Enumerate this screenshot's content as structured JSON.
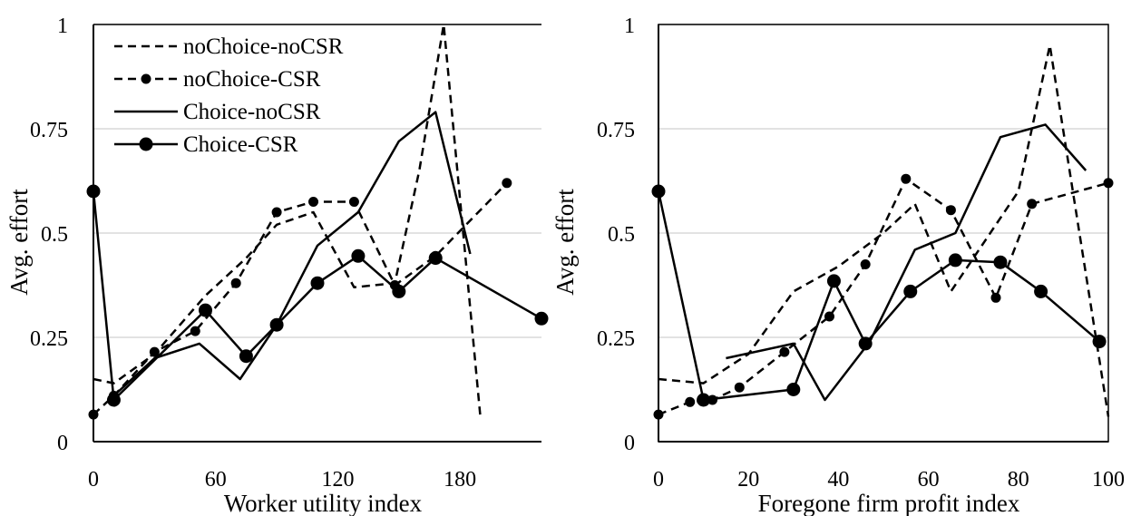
{
  "chart_data": [
    {
      "type": "line",
      "xlabel": "Worker utility index",
      "ylabel": "Avg. effort",
      "xlim": [
        0,
        220
      ],
      "ylim": [
        0,
        1
      ],
      "xticks": [
        "0",
        "60",
        "120",
        "180"
      ],
      "xtick_values": [
        0,
        60,
        120,
        180
      ],
      "yticks": [
        "0",
        "0.25",
        "0.5",
        "0.75",
        "1"
      ],
      "ytick_values": [
        0,
        0.25,
        0.5,
        0.75,
        1
      ],
      "grid": "horizontal",
      "legend_placement": "top-left",
      "series": [
        {
          "name": "noChoice-noCSR",
          "style": "dashed",
          "marker": false,
          "points": [
            [
              0,
              0.15
            ],
            [
              10,
              0.14
            ],
            [
              30,
              0.21
            ],
            [
              55,
              0.35
            ],
            [
              75,
              0.44
            ],
            [
              90,
              0.52
            ],
            [
              108,
              0.55
            ],
            [
              128,
              0.37
            ],
            [
              148,
              0.38
            ],
            [
              160,
              0.65
            ],
            [
              172,
              1.0
            ],
            [
              190,
              0.06
            ]
          ]
        },
        {
          "name": "noChoice-CSR",
          "style": "dashed",
          "marker": true,
          "points": [
            [
              0,
              0.065
            ],
            [
              10,
              0.11
            ],
            [
              30,
              0.215
            ],
            [
              50,
              0.265
            ],
            [
              70,
              0.38
            ],
            [
              90,
              0.55
            ],
            [
              108,
              0.575
            ],
            [
              128,
              0.575
            ],
            [
              148,
              0.375
            ],
            [
              168,
              0.445
            ],
            [
              203,
              0.62
            ]
          ]
        },
        {
          "name": "Choice-noCSR",
          "style": "solid",
          "marker": false,
          "points": [
            [
              10,
              0.11
            ],
            [
              30,
              0.2
            ],
            [
              52,
              0.235
            ],
            [
              72,
              0.15
            ],
            [
              90,
              0.28
            ],
            [
              110,
              0.47
            ],
            [
              130,
              0.55
            ],
            [
              150,
              0.72
            ],
            [
              168,
              0.79
            ],
            [
              185,
              0.45
            ]
          ]
        },
        {
          "name": "Choice-CSR",
          "style": "solid",
          "marker": true,
          "points": [
            [
              0,
              0.6
            ],
            [
              10,
              0.1
            ],
            [
              55,
              0.315
            ],
            [
              75,
              0.205
            ],
            [
              90,
              0.28
            ],
            [
              110,
              0.38
            ],
            [
              130,
              0.445
            ],
            [
              150,
              0.36
            ],
            [
              168,
              0.44
            ],
            [
              220,
              0.295
            ]
          ]
        }
      ]
    },
    {
      "type": "line",
      "xlabel": "Foregone firm profit index",
      "ylabel": "Avg. effort",
      "xlim": [
        0,
        100
      ],
      "ylim": [
        0,
        1
      ],
      "xticks": [
        "0",
        "20",
        "40",
        "60",
        "80",
        "100"
      ],
      "xtick_values": [
        0,
        20,
        40,
        60,
        80,
        100
      ],
      "yticks": [
        "0",
        "0.25",
        "0.5",
        "0.75",
        "1"
      ],
      "ytick_values": [
        0,
        0.25,
        0.5,
        0.75,
        1
      ],
      "grid": "horizontal",
      "legend_placement": "none",
      "series": [
        {
          "name": "noChoice-noCSR",
          "style": "dashed",
          "marker": false,
          "points": [
            [
              0,
              0.15
            ],
            [
              10,
              0.14
            ],
            [
              20,
              0.21
            ],
            [
              30,
              0.36
            ],
            [
              40,
              0.42
            ],
            [
              50,
              0.5
            ],
            [
              57,
              0.57
            ],
            [
              65,
              0.36
            ],
            [
              80,
              0.6
            ],
            [
              87,
              0.95
            ],
            [
              100,
              0.06
            ]
          ]
        },
        {
          "name": "noChoice-CSR",
          "style": "dashed",
          "marker": true,
          "points": [
            [
              0,
              0.065
            ],
            [
              7,
              0.095
            ],
            [
              12,
              0.1
            ],
            [
              18,
              0.13
            ],
            [
              28,
              0.215
            ],
            [
              38,
              0.3
            ],
            [
              46,
              0.425
            ],
            [
              55,
              0.63
            ],
            [
              65,
              0.555
            ],
            [
              75,
              0.345
            ],
            [
              83,
              0.57
            ],
            [
              100,
              0.62
            ]
          ]
        },
        {
          "name": "Choice-noCSR",
          "style": "solid",
          "marker": false,
          "points": [
            [
              15,
              0.2
            ],
            [
              30,
              0.235
            ],
            [
              37,
              0.1
            ],
            [
              47,
              0.24
            ],
            [
              57,
              0.46
            ],
            [
              66,
              0.5
            ],
            [
              76,
              0.73
            ],
            [
              86,
              0.76
            ],
            [
              95,
              0.65
            ]
          ]
        },
        {
          "name": "Choice-CSR",
          "style": "solid",
          "marker": true,
          "points": [
            [
              0,
              0.6
            ],
            [
              10,
              0.1
            ],
            [
              30,
              0.125
            ],
            [
              39,
              0.385
            ],
            [
              46,
              0.235
            ],
            [
              56,
              0.36
            ],
            [
              66,
              0.435
            ],
            [
              76,
              0.43
            ],
            [
              85,
              0.36
            ],
            [
              98,
              0.24
            ]
          ]
        }
      ]
    }
  ]
}
